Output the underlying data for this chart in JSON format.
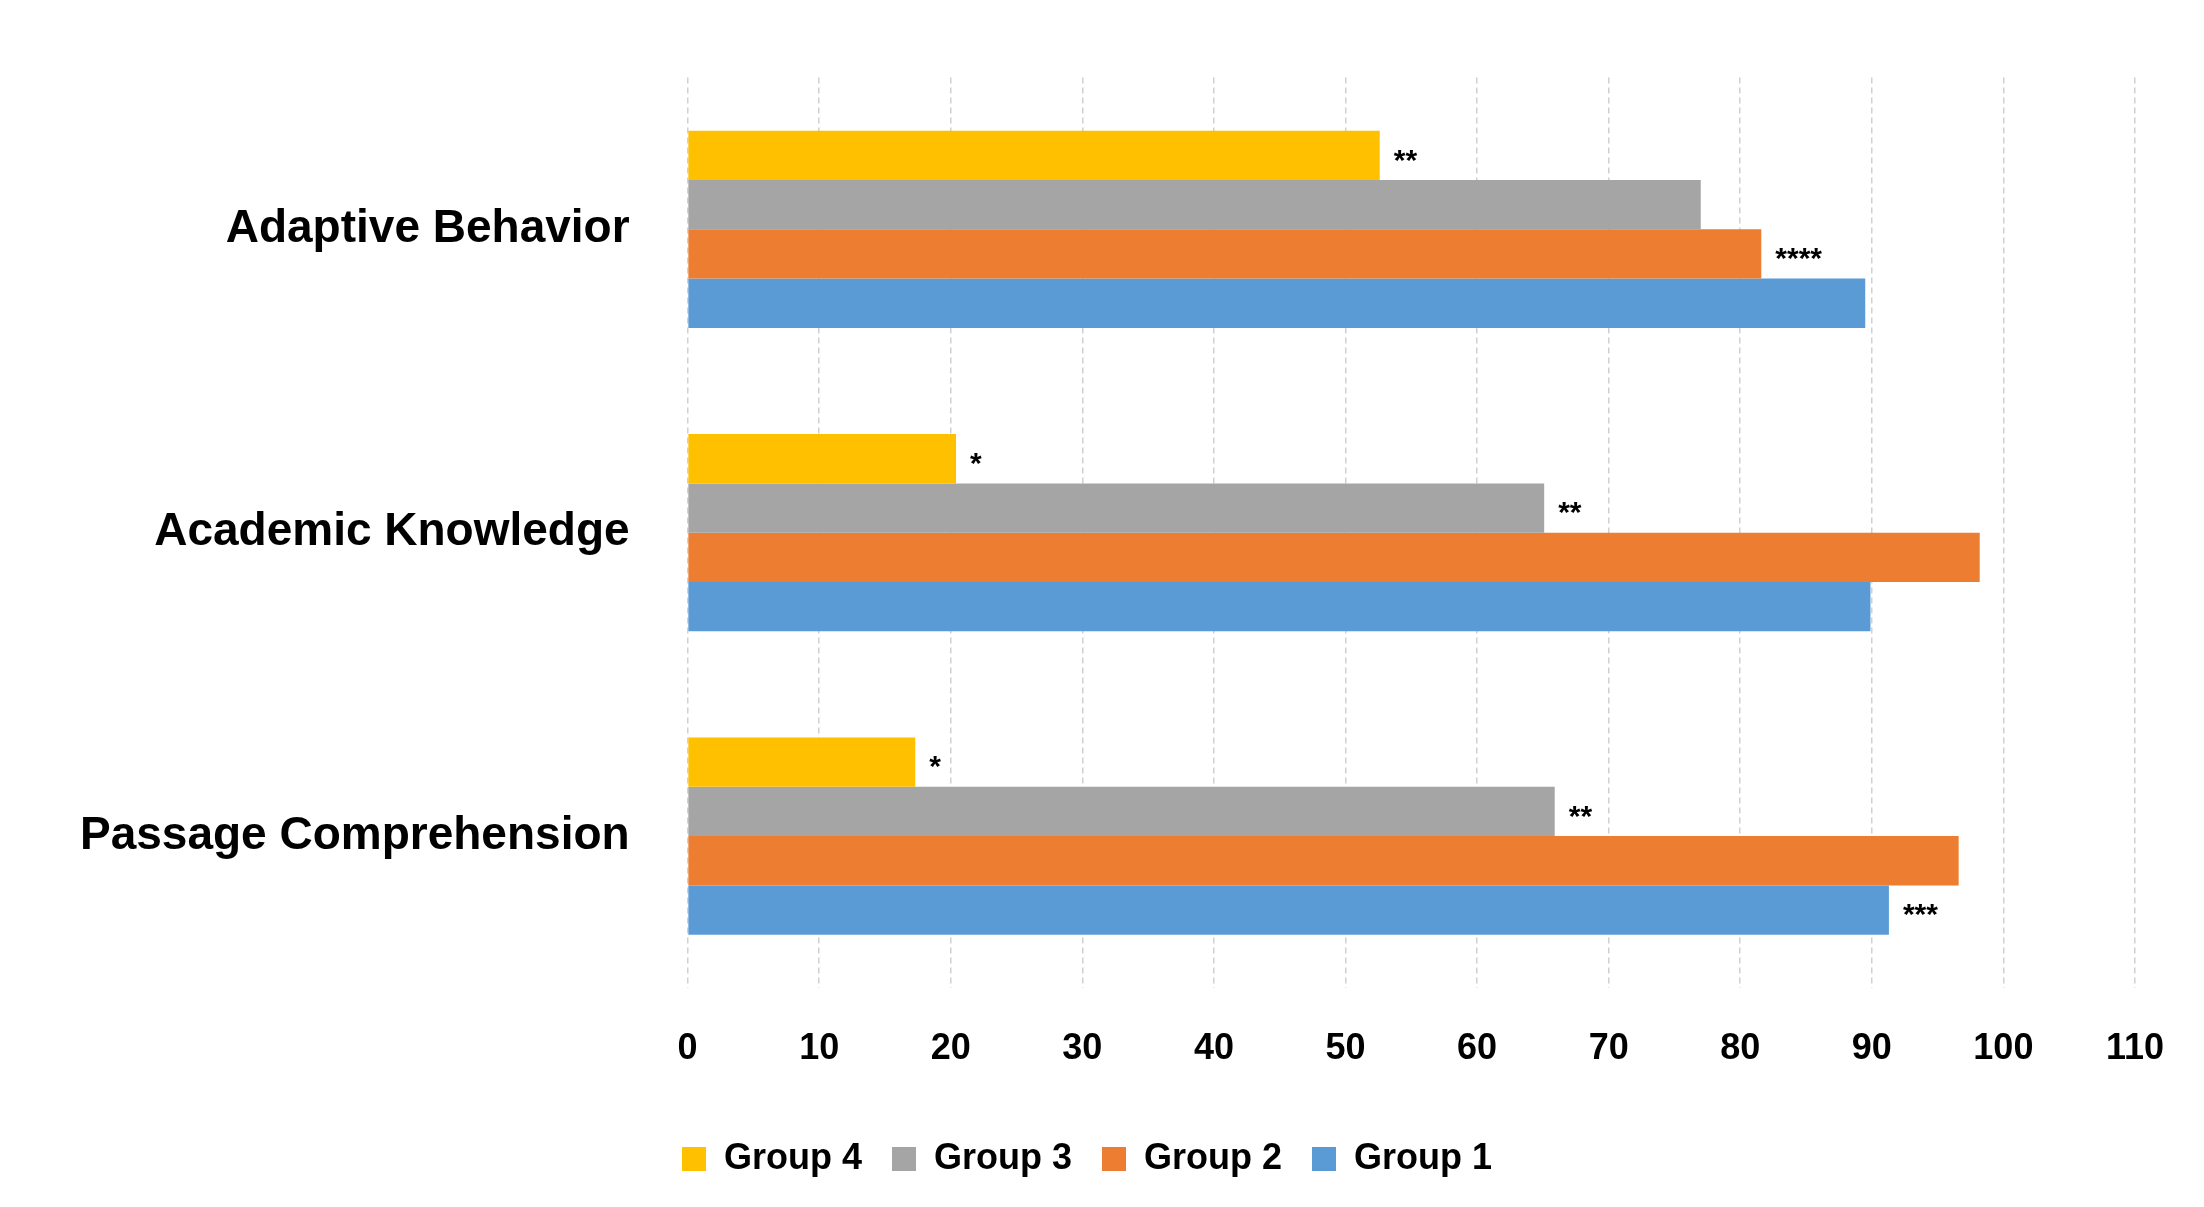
{
  "chart_data": {
    "type": "bar",
    "orientation": "horizontal",
    "categories": [
      "Adaptive Behavior",
      "Academic Knowledge",
      "Passage Comprehension"
    ],
    "series": [
      {
        "name": "Group 4",
        "color": "#ffc000",
        "values": [
          52.6,
          20.4,
          17.3
        ]
      },
      {
        "name": "Group 3",
        "color": "#a5a5a5",
        "values": [
          77.0,
          65.1,
          65.9
        ]
      },
      {
        "name": "Group 2",
        "color": "#ed7d31",
        "values": [
          81.6,
          98.2,
          96.6
        ]
      },
      {
        "name": "Group 1",
        "color": "#5b9bd5",
        "values": [
          89.5,
          89.9,
          91.3
        ]
      }
    ],
    "xlim": [
      0,
      110
    ],
    "xticks": [
      0,
      10,
      20,
      30,
      40,
      50,
      60,
      70,
      80,
      90,
      100,
      110
    ],
    "grid": "x",
    "legend": "bottom",
    "annotations": [
      {
        "text": "**",
        "x": 52.6,
        "y": "Adaptive Behavior"
      },
      {
        "text": "****",
        "x": 81.6,
        "y": "Adaptive Behavior"
      },
      {
        "text": "*",
        "x": 20.4,
        "y": "Academic Knowledge"
      },
      {
        "text": "**",
        "x": 65.1,
        "y": "Academic Knowledge"
      },
      {
        "text": "*",
        "x": 17.3,
        "y": "Passage Comprehension"
      },
      {
        "text": "**",
        "x": 65.9,
        "y": "Passage Comprehension"
      },
      {
        "text": "***",
        "x": 91.3,
        "y": "Passage Comprehension"
      }
    ]
  }
}
